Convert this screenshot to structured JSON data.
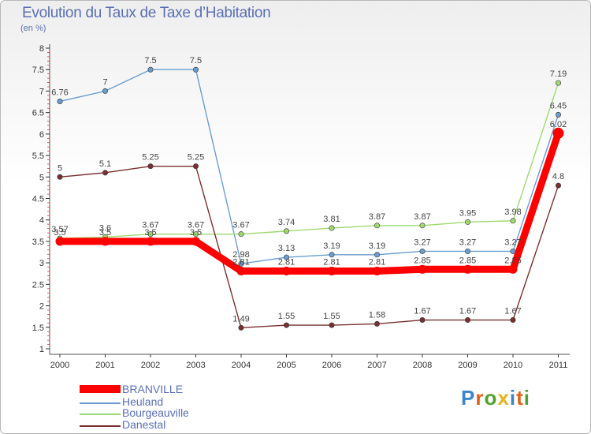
{
  "header": {
    "title": "Evolution du Taux de Taxe d’Habitation",
    "subtitle": "(en %)"
  },
  "brand": {
    "text": "Proxiti",
    "letter_colors": [
      "#3a86c8",
      "#e0621a",
      "#54a032",
      "#e8b21c",
      "#3a86c8",
      "#e0621a",
      "#54a032"
    ]
  },
  "chart_data": {
    "type": "line",
    "x": [
      "2000",
      "2001",
      "2002",
      "2003",
      "2004",
      "2005",
      "2006",
      "2007",
      "2008",
      "2009",
      "2010",
      "2011"
    ],
    "ylim": [
      1,
      8
    ],
    "yticks": [
      "1",
      "1.5",
      "2",
      "2.5",
      "3",
      "3.5",
      "4",
      "4.5",
      "5",
      "5.5",
      "6",
      "6.5",
      "7",
      "7.5",
      "8"
    ],
    "xlabel": "",
    "ylabel": "",
    "grid": false,
    "legend_position": "bottom-left",
    "series": [
      {
        "name": "BRANVILLE",
        "color": "#ff0000",
        "emphasis": true,
        "values": [
          3.5,
          3.5,
          3.5,
          3.5,
          2.81,
          2.81,
          2.81,
          2.81,
          2.85,
          2.85,
          2.85,
          6.02
        ],
        "labels": [
          "3.5",
          "3.5",
          "3.5",
          "3.5",
          "2.81",
          "2.81",
          "2.81",
          "2.81",
          "2.85",
          "2.85",
          "2.85",
          "6.02"
        ]
      },
      {
        "name": "Heuland",
        "color": "#6a9ecf",
        "emphasis": false,
        "values": [
          6.76,
          7,
          7.5,
          7.5,
          2.98,
          3.13,
          3.19,
          3.19,
          3.27,
          3.27,
          3.27,
          6.45
        ],
        "labels": [
          "6.76",
          "7",
          "7.5",
          "7.5",
          "2.98",
          "3.13",
          "3.19",
          "3.19",
          "3.27",
          "3.27",
          "3.27",
          "6.45"
        ]
      },
      {
        "name": "Bourgeauville",
        "color": "#9fd972",
        "emphasis": false,
        "values": [
          3.57,
          3.6,
          3.67,
          3.67,
          3.67,
          3.74,
          3.81,
          3.87,
          3.87,
          3.95,
          3.98,
          7.19
        ],
        "labels": [
          "3.57",
          "3.6",
          "3.67",
          "3.67",
          "3.67",
          "3.74",
          "3.81",
          "3.87",
          "3.87",
          "3.95",
          "3.98",
          "7.19"
        ]
      },
      {
        "name": "Danestal",
        "color": "#7a3030",
        "emphasis": false,
        "values": [
          5,
          5.1,
          5.25,
          5.25,
          1.49,
          1.55,
          1.55,
          1.58,
          1.67,
          1.67,
          1.67,
          4.8
        ],
        "labels": [
          "5",
          "5.1",
          "5.25",
          "5.25",
          "1.49",
          "1.55",
          "1.55",
          "1.58",
          "1.67",
          "1.67",
          "1.67",
          "4.8"
        ]
      }
    ]
  }
}
